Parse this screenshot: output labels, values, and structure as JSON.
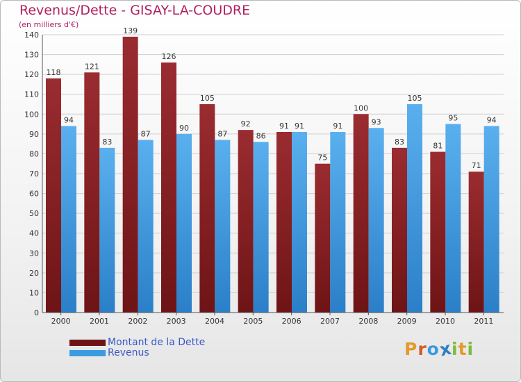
{
  "title": "Revenus/Dette - GISAY-LA-COUDRE",
  "subtitle": "(en milliers d'€)",
  "colors": {
    "dette": "#6e1416",
    "dette_light": "#9a2c30",
    "revenus": "#2b7fc8",
    "revenus_light": "#5ab0ee",
    "axis_text": "#333333",
    "title": "#b02060"
  },
  "legend": [
    {
      "label": "Montant de la Dette",
      "color": "#6e1416"
    },
    {
      "label": "Revenus",
      "color": "#3a9be0"
    }
  ],
  "brand": {
    "text": "Proxiti",
    "letters": [
      {
        "ch": "P",
        "color": "#e39a2a"
      },
      {
        "ch": "r",
        "color": "#d45a2a"
      },
      {
        "ch": "o",
        "color": "#3a9be0"
      },
      {
        "ch": "x",
        "color": "#2e7fc4"
      },
      {
        "ch": "i",
        "color": "#7cbc3a"
      },
      {
        "ch": "t",
        "color": "#e39a2a"
      },
      {
        "ch": "i",
        "color": "#7cbc3a"
      }
    ]
  },
  "chart_data": {
    "type": "bar",
    "categories": [
      "2000",
      "2001",
      "2002",
      "2003",
      "2004",
      "2005",
      "2006",
      "2007",
      "2008",
      "2009",
      "2010",
      "2011"
    ],
    "series": [
      {
        "name": "Montant de la Dette",
        "values": [
          118,
          121,
          139,
          126,
          105,
          92,
          91,
          75,
          100,
          83,
          81,
          71
        ]
      },
      {
        "name": "Revenus",
        "values": [
          94,
          83,
          87,
          90,
          87,
          86,
          91,
          91,
          93,
          105,
          95,
          94
        ]
      }
    ],
    "ylim": [
      0,
      140
    ],
    "yticks": [
      0,
      10,
      20,
      30,
      40,
      50,
      60,
      70,
      80,
      90,
      100,
      110,
      120,
      130,
      140
    ],
    "grid": true,
    "legend_position": "bottom-left"
  }
}
